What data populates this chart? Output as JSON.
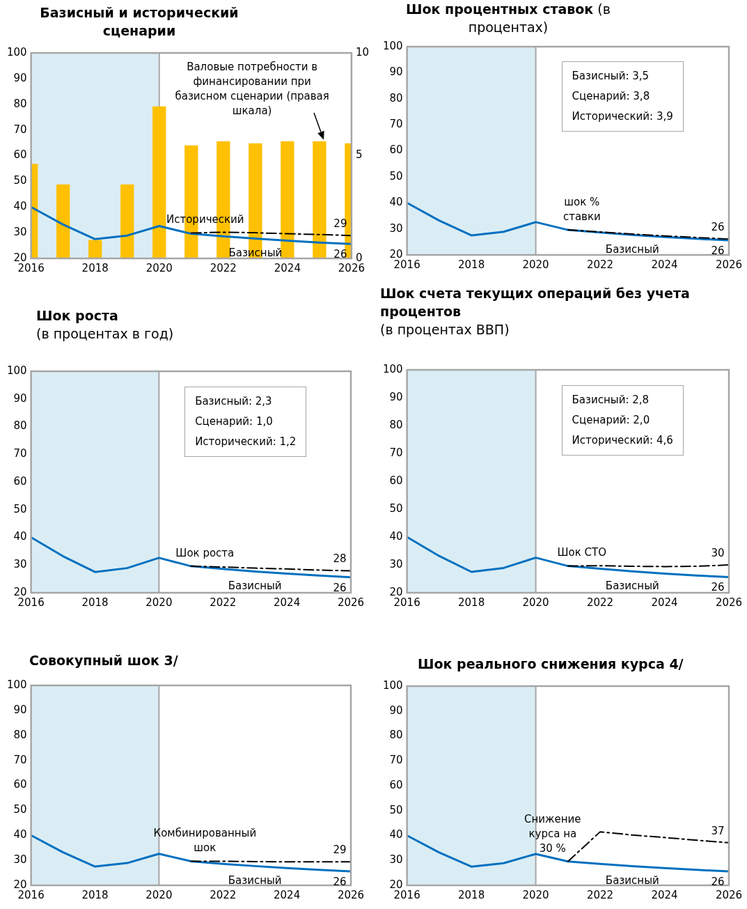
{
  "chart_data": [
    {
      "type": "line",
      "title": "Базисный и исторический сценарии",
      "xlim": [
        2016,
        2026
      ],
      "xticks": [
        2016,
        2018,
        2020,
        2022,
        2024,
        2026
      ],
      "ylim": [
        20,
        100
      ],
      "yticks": [
        20,
        30,
        40,
        50,
        60,
        70,
        80,
        90,
        100
      ],
      "y2lim": [
        0,
        10
      ],
      "y2ticks": [
        0,
        5,
        10
      ],
      "bands": [
        {
          "axis": "x",
          "from": 2016,
          "to": 2020,
          "color": "#daedf4"
        }
      ],
      "series": [
        {
          "type": "bar",
          "axis": "y2",
          "color": "#ffc000",
          "x": [
            2016,
            2017,
            2018,
            2019,
            2020,
            2021,
            2022,
            2023,
            2024,
            2025,
            2026
          ],
          "values": [
            4.6,
            3.6,
            0.9,
            3.6,
            7.4,
            5.5,
            5.7,
            5.6,
            5.7,
            5.7,
            5.6
          ]
        },
        {
          "name": "Базисный",
          "color": "#0070c0",
          "line_style": "solid",
          "x": [
            2016,
            2017,
            2018,
            2019,
            2020,
            2021,
            2022,
            2023,
            2024,
            2025,
            2026
          ],
          "values": [
            40,
            33.2,
            27.5,
            28.9,
            32.6,
            29.6,
            28.6,
            27.7,
            26.9,
            26.2,
            25.6
          ],
          "value_labels": [
            null,
            null,
            null,
            null,
            null,
            null,
            null,
            null,
            null,
            null,
            "26"
          ]
        },
        {
          "name": "Исторический",
          "color": "#000000",
          "line_style": "dashed",
          "x": [
            2021,
            2022,
            2023,
            2024,
            2025,
            2026
          ],
          "values": [
            29.9,
            30.2,
            30.0,
            29.6,
            29.3,
            28.9
          ],
          "value_labels": [
            null,
            null,
            null,
            null,
            null,
            "29"
          ]
        }
      ],
      "annotations": [
        "Валовые потребности в финансировании при базисном сценарии (правая шкала)"
      ]
    },
    {
      "type": "line",
      "title": "Шок процентных ставок",
      "subtitle": "(в процентах)",
      "xlim": [
        2016,
        2026
      ],
      "xticks": [
        2016,
        2018,
        2020,
        2022,
        2024,
        2026
      ],
      "ylim": [
        20,
        100
      ],
      "yticks": [
        20,
        30,
        40,
        50,
        60,
        70,
        80,
        90,
        100
      ],
      "bands": [
        {
          "axis": "x",
          "from": 2016,
          "to": 2020,
          "color": "#daedf4"
        }
      ],
      "series": [
        {
          "name": "Базисный",
          "color": "#0070c0",
          "line_style": "solid",
          "x": [
            2016,
            2017,
            2018,
            2019,
            2020,
            2021,
            2022,
            2023,
            2024,
            2025,
            2026
          ],
          "values": [
            40,
            33.2,
            27.5,
            28.9,
            32.6,
            29.6,
            28.6,
            27.7,
            26.9,
            26.2,
            25.6
          ],
          "value_labels": [
            null,
            null,
            null,
            null,
            null,
            null,
            null,
            null,
            null,
            null,
            "26"
          ]
        },
        {
          "name": "шок % ставки",
          "color": "#000000",
          "line_style": "dashed",
          "x": [
            2021,
            2022,
            2023,
            2024,
            2025,
            2026
          ],
          "values": [
            29.6,
            28.8,
            28.0,
            27.3,
            26.7,
            26.1
          ],
          "value_labels": [
            null,
            null,
            null,
            null,
            null,
            "26"
          ]
        }
      ],
      "annotations": [
        "Базисный: 3,5",
        "Сценарий: 3,8",
        "Исторический: 3,9"
      ]
    },
    {
      "type": "line",
      "title": "Шок роста",
      "subtitle": "(в процентах в год)",
      "xlim": [
        2016,
        2026
      ],
      "xticks": [
        2016,
        2018,
        2020,
        2022,
        2024,
        2026
      ],
      "ylim": [
        20,
        100
      ],
      "yticks": [
        20,
        30,
        40,
        50,
        60,
        70,
        80,
        90,
        100
      ],
      "bands": [
        {
          "axis": "x",
          "from": 2016,
          "to": 2020,
          "color": "#daedf4"
        }
      ],
      "series": [
        {
          "name": "Базисный",
          "color": "#0070c0",
          "line_style": "solid",
          "x": [
            2016,
            2017,
            2018,
            2019,
            2020,
            2021,
            2022,
            2023,
            2024,
            2025,
            2026
          ],
          "values": [
            40,
            33.2,
            27.5,
            28.9,
            32.6,
            29.6,
            28.6,
            27.7,
            26.9,
            26.2,
            25.6
          ],
          "value_labels": [
            null,
            null,
            null,
            null,
            null,
            null,
            null,
            null,
            null,
            null,
            "26"
          ]
        },
        {
          "name": "Шок роста",
          "color": "#000000",
          "line_style": "dashed",
          "x": [
            2021,
            2022,
            2023,
            2024,
            2025,
            2026
          ],
          "values": [
            29.6,
            29.3,
            28.9,
            28.6,
            28.2,
            27.9
          ],
          "value_labels": [
            null,
            null,
            null,
            null,
            null,
            "28"
          ]
        }
      ],
      "annotations": [
        "Базисный: 2,3",
        "Сценарий: 1,0",
        "Исторический: 1,2"
      ]
    },
    {
      "type": "line",
      "title": "Шок счета текущих операций без учета процентов",
      "subtitle": "(в процентах ВВП)",
      "xlim": [
        2016,
        2026
      ],
      "xticks": [
        2016,
        2018,
        2020,
        2022,
        2024,
        2026
      ],
      "ylim": [
        20,
        100
      ],
      "yticks": [
        20,
        30,
        40,
        50,
        60,
        70,
        80,
        90,
        100
      ],
      "bands": [
        {
          "axis": "x",
          "from": 2016,
          "to": 2020,
          "color": "#daedf4"
        }
      ],
      "series": [
        {
          "name": "Базисный",
          "color": "#0070c0",
          "line_style": "solid",
          "x": [
            2016,
            2017,
            2018,
            2019,
            2020,
            2021,
            2022,
            2023,
            2024,
            2025,
            2026
          ],
          "values": [
            40,
            33.2,
            27.5,
            28.9,
            32.6,
            29.6,
            28.6,
            27.7,
            26.9,
            26.2,
            25.6
          ],
          "value_labels": [
            null,
            null,
            null,
            null,
            null,
            null,
            null,
            null,
            null,
            null,
            "26"
          ]
        },
        {
          "name": "Шок СТО",
          "color": "#000000",
          "line_style": "dashed",
          "x": [
            2021,
            2022,
            2023,
            2024,
            2025,
            2026
          ],
          "values": [
            29.6,
            29.7,
            29.5,
            29.4,
            29.5,
            30.0
          ],
          "value_labels": [
            null,
            null,
            null,
            null,
            null,
            "30"
          ]
        }
      ],
      "annotations": [
        "Базисный: 2,8",
        "Сценарий: 2,0",
        "Исторический: 4,6"
      ]
    },
    {
      "type": "line",
      "title": "Совокупный шок 3/",
      "xlim": [
        2016,
        2026
      ],
      "xticks": [
        2016,
        2018,
        2020,
        2022,
        2024,
        2026
      ],
      "ylim": [
        20,
        100
      ],
      "yticks": [
        20,
        30,
        40,
        50,
        60,
        70,
        80,
        90,
        100
      ],
      "bands": [
        {
          "axis": "x",
          "from": 2016,
          "to": 2020,
          "color": "#daedf4"
        }
      ],
      "series": [
        {
          "name": "Базисный",
          "color": "#0070c0",
          "line_style": "solid",
          "x": [
            2016,
            2017,
            2018,
            2019,
            2020,
            2021,
            2022,
            2023,
            2024,
            2025,
            2026
          ],
          "values": [
            40,
            33.2,
            27.5,
            28.9,
            32.6,
            29.6,
            28.6,
            27.7,
            26.9,
            26.2,
            25.6
          ],
          "value_labels": [
            null,
            null,
            null,
            null,
            null,
            null,
            null,
            null,
            null,
            null,
            "26"
          ]
        },
        {
          "name": "Комбинированный шок",
          "color": "#000000",
          "line_style": "dashed",
          "x": [
            2021,
            2022,
            2023,
            2024,
            2025,
            2026
          ],
          "values": [
            29.6,
            29.6,
            29.5,
            29.4,
            29.4,
            29.4
          ],
          "value_labels": [
            null,
            null,
            null,
            null,
            null,
            "29"
          ]
        }
      ]
    },
    {
      "type": "line",
      "title": "Шок реального снижения курса 4/",
      "xlim": [
        2016,
        2026
      ],
      "xticks": [
        2016,
        2018,
        2020,
        2022,
        2024,
        2026
      ],
      "ylim": [
        20,
        100
      ],
      "yticks": [
        20,
        30,
        40,
        50,
        60,
        70,
        80,
        90,
        100
      ],
      "bands": [
        {
          "axis": "x",
          "from": 2016,
          "to": 2020,
          "color": "#daedf4"
        }
      ],
      "series": [
        {
          "name": "Базисный",
          "color": "#0070c0",
          "line_style": "solid",
          "x": [
            2016,
            2017,
            2018,
            2019,
            2020,
            2021,
            2022,
            2023,
            2024,
            2025,
            2026
          ],
          "values": [
            40,
            33.2,
            27.5,
            28.9,
            32.6,
            29.6,
            28.6,
            27.7,
            26.9,
            26.2,
            25.6
          ],
          "value_labels": [
            null,
            null,
            null,
            null,
            null,
            null,
            null,
            null,
            null,
            null,
            "26"
          ]
        },
        {
          "name": "Снижение курса на 30 %",
          "color": "#000000",
          "line_style": "dashed",
          "x": [
            2021,
            2022,
            2023,
            2024,
            2025,
            2026
          ],
          "values": [
            29.6,
            41.5,
            40.2,
            39.2,
            38.1,
            37.1
          ],
          "value_labels": [
            null,
            null,
            null,
            null,
            null,
            "37"
          ]
        }
      ]
    }
  ]
}
